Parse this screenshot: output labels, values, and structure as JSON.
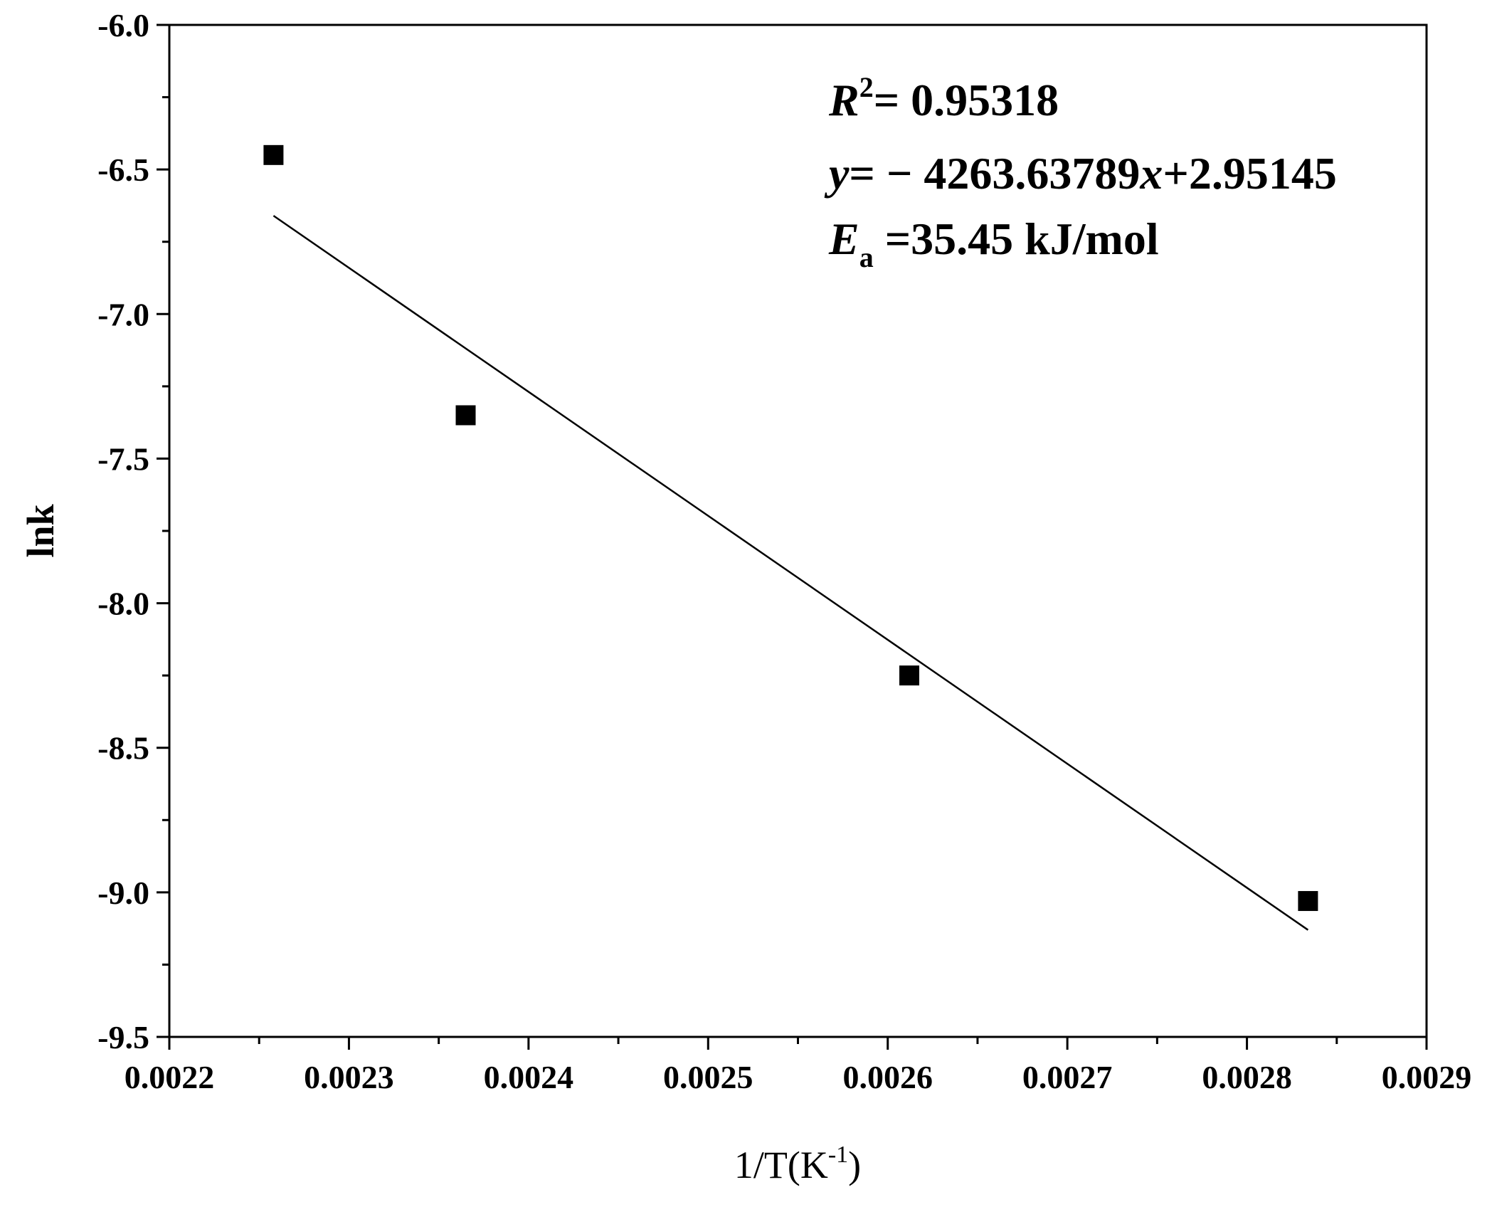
{
  "chart_data": {
    "type": "scatter",
    "x": [
      0.002258,
      0.002365,
      0.002612,
      0.002834
    ],
    "y": [
      -6.45,
      -7.35,
      -8.25,
      -9.03
    ],
    "fit_line": {
      "x": [
        0.002258,
        0.002834
      ],
      "y": [
        -6.66,
        -9.13
      ]
    },
    "xlim": [
      0.0022,
      0.0029
    ],
    "ylim": [
      -9.5,
      -6.0
    ],
    "x_ticks": [
      "0.0022",
      "0.0023",
      "0.0024",
      "0.0025",
      "0.0026",
      "0.0027",
      "0.0028",
      "0.0029"
    ],
    "y_ticks": [
      "-6.0",
      "-6.5",
      "-7.0",
      "-7.5",
      "-8.0",
      "-8.5",
      "-9.0",
      "-9.5"
    ],
    "xlabel": {
      "main": "1/T(K",
      "sup": "-1",
      "close": ")"
    },
    "ylabel": "lnk",
    "annotations": {
      "r2": {
        "var": "R",
        "sup": "2",
        "text": "= 0.95318"
      },
      "equation": {
        "y_var": "y",
        "mid": "= − 4263.63789",
        "x_var": "x",
        "tail": "+2.95145"
      },
      "ea": {
        "var": "E",
        "sub": "a",
        "text": " =35.45 kJ/mol"
      }
    },
    "grid": false,
    "marker": "square",
    "colors": {
      "marker": "#000000",
      "line": "#000000"
    }
  }
}
